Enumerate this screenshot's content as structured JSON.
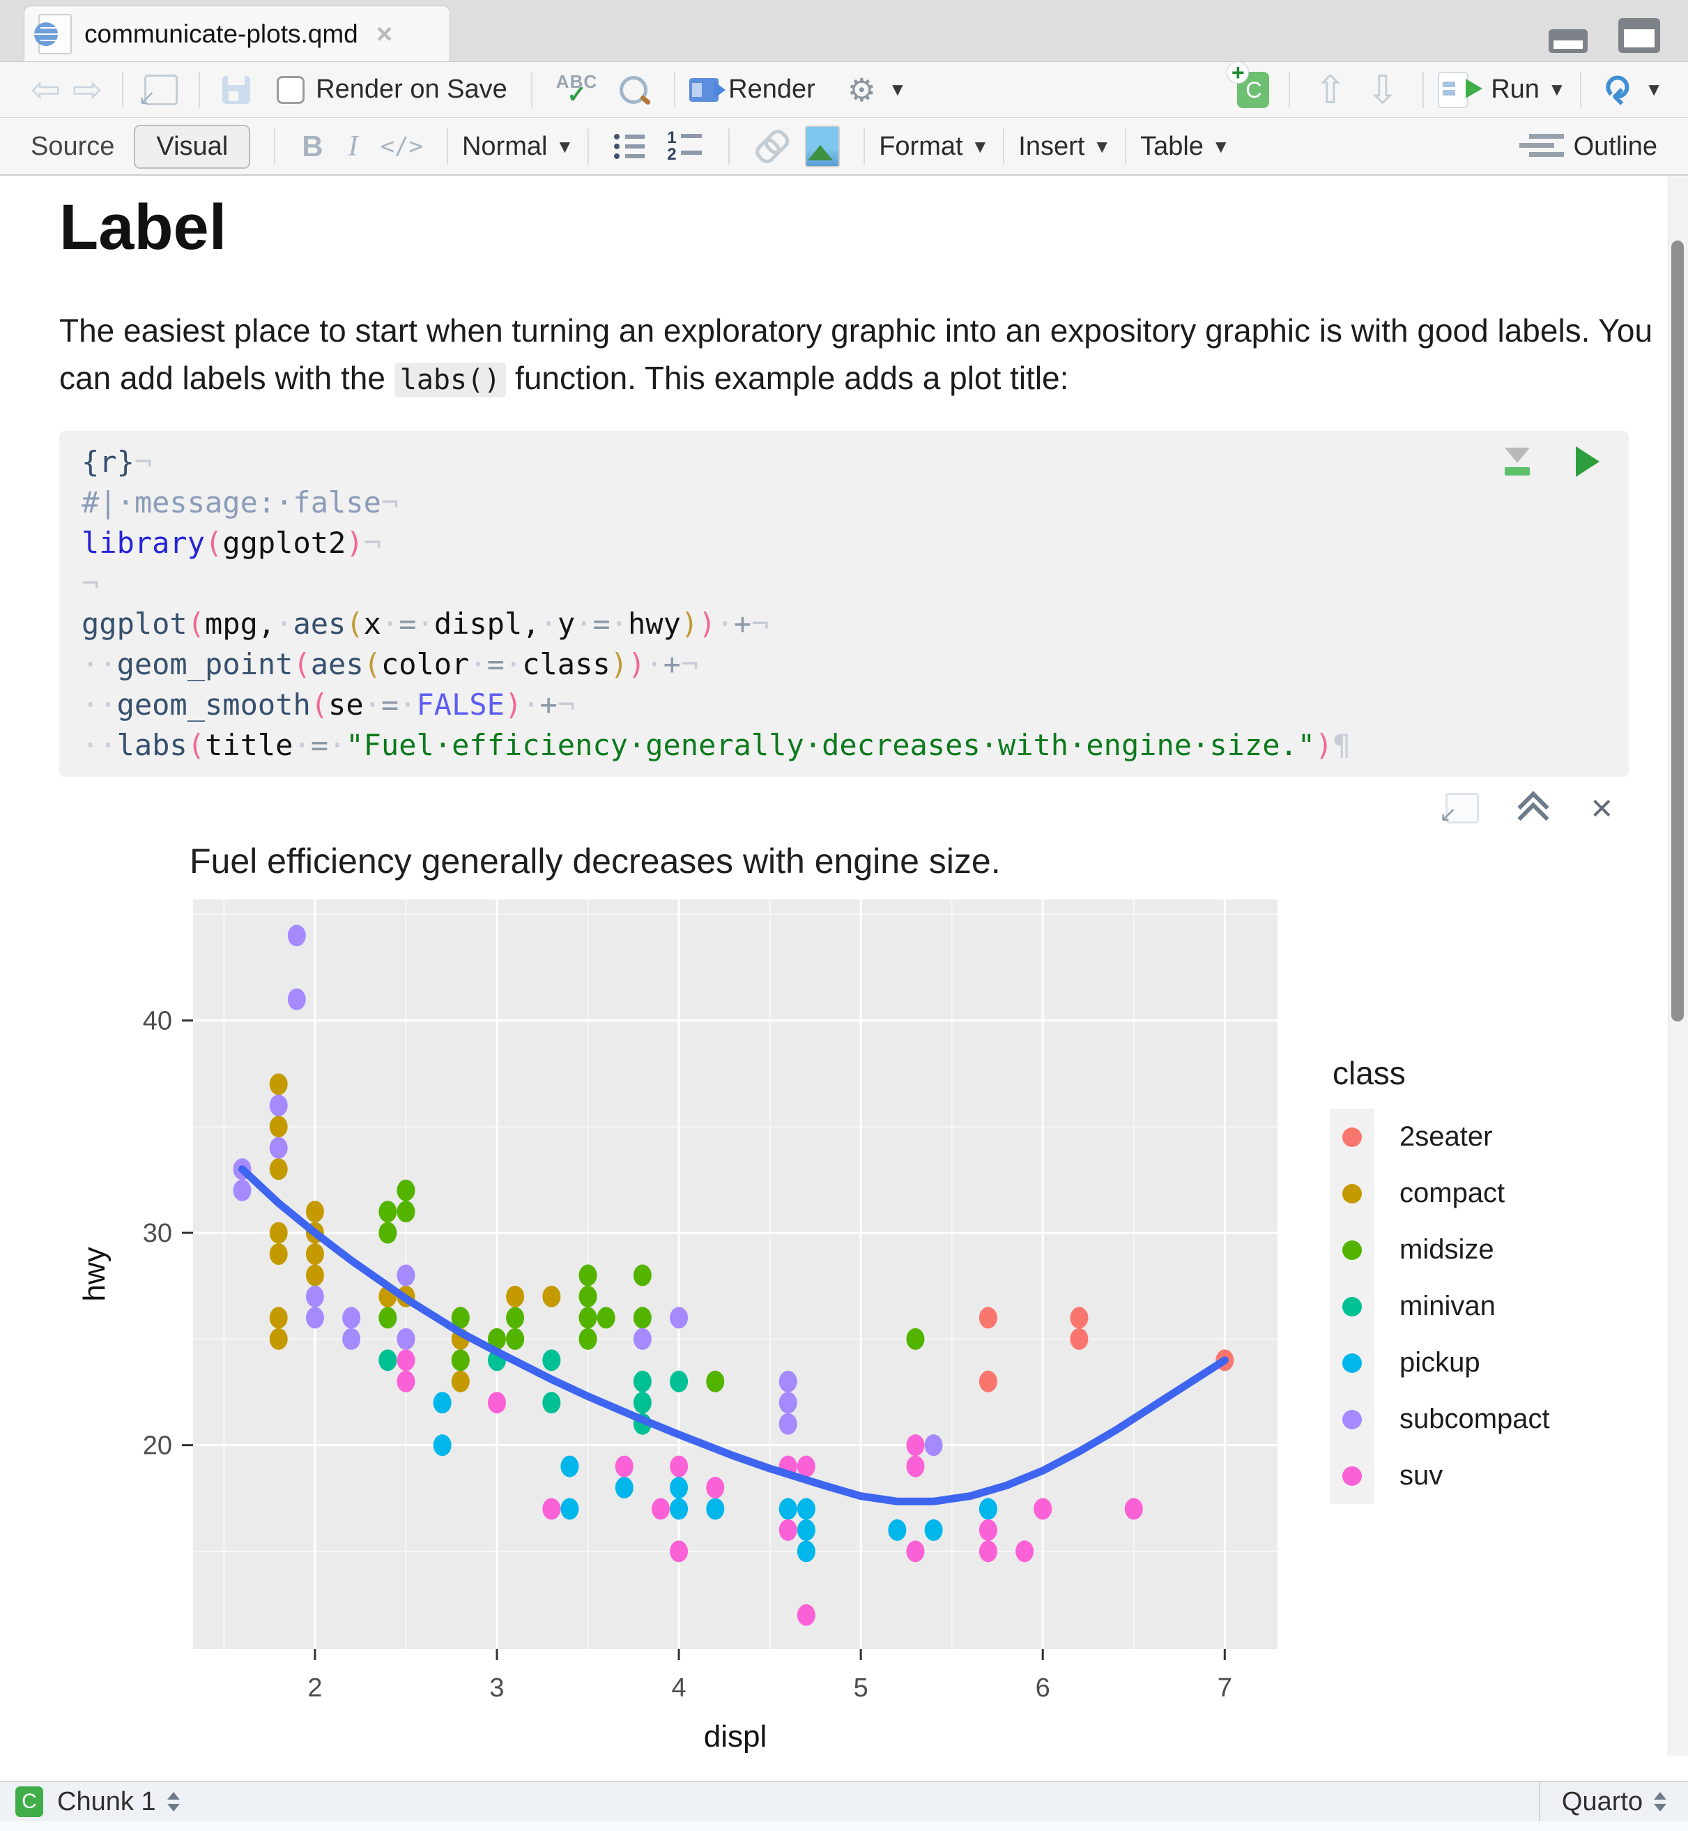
{
  "window": {
    "tab_title": "communicate-plots.qmd"
  },
  "toolbar": {
    "render_on_save_label": "Render on Save",
    "render_label": "Render",
    "run_label": "Run"
  },
  "format_bar": {
    "source_label": "Source",
    "visual_label": "Visual",
    "bold_label": "B",
    "italic_label": "I",
    "code_label": "</>",
    "paragraph_style": "Normal",
    "format_label": "Format",
    "insert_label": "Insert",
    "table_label": "Table",
    "outline_label": "Outline"
  },
  "document": {
    "heading": "Label",
    "para_part1": "The easiest place to start when turning an exploratory graphic into an expository graphic is with good labels. You can add labels with the ",
    "para_code": "labs()",
    "para_part2": " function. This example adds a plot title:"
  },
  "code": {
    "lines": [
      [
        [
          "fn",
          "{r}"
        ],
        [
          "ws",
          "¬"
        ]
      ],
      [
        [
          "com",
          "#|·message:·false"
        ],
        [
          "ws",
          "¬"
        ]
      ],
      [
        [
          "lib",
          "library"
        ],
        [
          "p1",
          "("
        ],
        [
          "txt",
          "ggplot2"
        ],
        [
          "p1",
          ")"
        ],
        [
          "ws",
          "¬"
        ]
      ],
      [
        [
          "ws",
          "¬"
        ]
      ],
      [
        [
          "fn",
          "ggplot"
        ],
        [
          "p1",
          "("
        ],
        [
          "txt",
          "mpg,"
        ],
        [
          "ws",
          "·"
        ],
        [
          "fn",
          "aes"
        ],
        [
          "p2",
          "("
        ],
        [
          "txt",
          "x"
        ],
        [
          "ws",
          "·"
        ],
        [
          "op",
          "="
        ],
        [
          "ws",
          "·"
        ],
        [
          "txt",
          "displ,"
        ],
        [
          "ws",
          "·"
        ],
        [
          "txt",
          "y"
        ],
        [
          "ws",
          "·"
        ],
        [
          "op",
          "="
        ],
        [
          "ws",
          "·"
        ],
        [
          "txt",
          "hwy"
        ],
        [
          "p2",
          ")"
        ],
        [
          "p1",
          ")"
        ],
        [
          "ws",
          "·"
        ],
        [
          "op",
          "+"
        ],
        [
          "ws",
          "¬"
        ]
      ],
      [
        [
          "ws",
          "··"
        ],
        [
          "fn",
          "geom_point"
        ],
        [
          "p1",
          "("
        ],
        [
          "fn",
          "aes"
        ],
        [
          "p2",
          "("
        ],
        [
          "txt",
          "color"
        ],
        [
          "ws",
          "·"
        ],
        [
          "op",
          "="
        ],
        [
          "ws",
          "·"
        ],
        [
          "txt",
          "class"
        ],
        [
          "p2",
          ")"
        ],
        [
          "p1",
          ")"
        ],
        [
          "ws",
          "·"
        ],
        [
          "op",
          "+"
        ],
        [
          "ws",
          "¬"
        ]
      ],
      [
        [
          "ws",
          "··"
        ],
        [
          "fn",
          "geom_smooth"
        ],
        [
          "p1",
          "("
        ],
        [
          "txt",
          "se"
        ],
        [
          "ws",
          "·"
        ],
        [
          "op",
          "="
        ],
        [
          "ws",
          "·"
        ],
        [
          "bool",
          "FALSE"
        ],
        [
          "p1",
          ")"
        ],
        [
          "ws",
          "·"
        ],
        [
          "op",
          "+"
        ],
        [
          "ws",
          "¬"
        ]
      ],
      [
        [
          "ws",
          "··"
        ],
        [
          "fn",
          "labs"
        ],
        [
          "p1",
          "("
        ],
        [
          "txt",
          "title"
        ],
        [
          "ws",
          "·"
        ],
        [
          "op",
          "="
        ],
        [
          "ws",
          "·"
        ],
        [
          "str",
          "\"Fuel·efficiency·generally·decreases·with·engine·size.\""
        ],
        [
          "p1",
          ")"
        ],
        [
          "ws",
          "¶"
        ]
      ]
    ]
  },
  "chart_data": {
    "type": "scatter",
    "title": "Fuel efficiency generally decreases with engine size.",
    "xlabel": "displ",
    "ylabel": "hwy",
    "xlim": [
      1.33,
      7.29
    ],
    "ylim": [
      10.4,
      45.7
    ],
    "x_ticks": [
      2,
      3,
      4,
      5,
      6,
      7
    ],
    "y_ticks": [
      20,
      30,
      40
    ],
    "x_minor": [
      1.5,
      2.5,
      3.5,
      4.5,
      5.5,
      6.5
    ],
    "y_minor": [
      15,
      25,
      35,
      45
    ],
    "grid": "on",
    "legend_position": "right",
    "legend_title": "class",
    "panel_color": "#ebebeb",
    "series": [
      {
        "name": "2seater",
        "color": "#F8766D",
        "points": [
          [
            5.7,
            26
          ],
          [
            5.7,
            23
          ],
          [
            6.2,
            26
          ],
          [
            6.2,
            25
          ],
          [
            7.0,
            24
          ]
        ]
      },
      {
        "name": "compact",
        "color": "#C49A00",
        "points": [
          [
            1.8,
            37
          ],
          [
            1.8,
            35
          ],
          [
            1.8,
            33
          ],
          [
            1.8,
            30
          ],
          [
            1.8,
            29
          ],
          [
            1.8,
            26
          ],
          [
            1.8,
            25
          ],
          [
            2.0,
            31
          ],
          [
            2.0,
            30
          ],
          [
            2.0,
            29
          ],
          [
            2.0,
            28
          ],
          [
            2.4,
            27
          ],
          [
            2.5,
            27
          ],
          [
            2.5,
            25
          ],
          [
            2.8,
            26
          ],
          [
            2.8,
            25
          ],
          [
            2.8,
            24
          ],
          [
            2.8,
            23
          ],
          [
            3.1,
            27
          ],
          [
            3.1,
            25
          ],
          [
            3.3,
            27
          ]
        ]
      },
      {
        "name": "midsize",
        "color": "#53B400",
        "points": [
          [
            2.4,
            31
          ],
          [
            2.4,
            30
          ],
          [
            2.5,
            32
          ],
          [
            2.5,
            31
          ],
          [
            2.4,
            26
          ],
          [
            2.8,
            26
          ],
          [
            3.1,
            26
          ],
          [
            3.5,
            26
          ],
          [
            3.6,
            26
          ],
          [
            3.8,
            26
          ],
          [
            3.0,
            25
          ],
          [
            3.1,
            25
          ],
          [
            3.5,
            25
          ],
          [
            3.5,
            28
          ],
          [
            3.8,
            28
          ],
          [
            3.5,
            27
          ],
          [
            2.8,
            24
          ],
          [
            4.2,
            23
          ],
          [
            5.3,
            25
          ]
        ]
      },
      {
        "name": "minivan",
        "color": "#00C094",
        "points": [
          [
            2.4,
            24
          ],
          [
            3.0,
            24
          ],
          [
            3.3,
            24
          ],
          [
            3.3,
            22
          ],
          [
            3.8,
            23
          ],
          [
            4.0,
            23
          ],
          [
            3.8,
            22
          ],
          [
            3.8,
            21
          ]
        ]
      },
      {
        "name": "pickup",
        "color": "#00B6EB",
        "points": [
          [
            2.7,
            22
          ],
          [
            2.7,
            20
          ],
          [
            3.4,
            19
          ],
          [
            3.7,
            18
          ],
          [
            4.0,
            18
          ],
          [
            3.4,
            17
          ],
          [
            4.0,
            17
          ],
          [
            4.2,
            17
          ],
          [
            4.6,
            17
          ],
          [
            4.7,
            17
          ],
          [
            4.7,
            16
          ],
          [
            5.2,
            16
          ],
          [
            5.4,
            16
          ],
          [
            5.7,
            17
          ],
          [
            4.7,
            15
          ]
        ]
      },
      {
        "name": "subcompact",
        "color": "#A58AFF",
        "points": [
          [
            1.9,
            44
          ],
          [
            1.9,
            41
          ],
          [
            1.8,
            36
          ],
          [
            1.8,
            34
          ],
          [
            1.6,
            33
          ],
          [
            1.6,
            32
          ],
          [
            2.5,
            28
          ],
          [
            2.0,
            27
          ],
          [
            2.0,
            26
          ],
          [
            2.2,
            26
          ],
          [
            2.2,
            25
          ],
          [
            2.5,
            25
          ],
          [
            4.0,
            26
          ],
          [
            3.8,
            25
          ],
          [
            4.6,
            23
          ],
          [
            4.6,
            22
          ],
          [
            4.6,
            21
          ],
          [
            5.4,
            20
          ]
        ]
      },
      {
        "name": "suv",
        "color": "#FB61D7",
        "points": [
          [
            2.5,
            24
          ],
          [
            2.5,
            23
          ],
          [
            3.0,
            22
          ],
          [
            3.7,
            19
          ],
          [
            4.0,
            19
          ],
          [
            4.2,
            18
          ],
          [
            3.3,
            17
          ],
          [
            3.9,
            17
          ],
          [
            4.0,
            15
          ],
          [
            4.6,
            19
          ],
          [
            4.7,
            19
          ],
          [
            4.6,
            16
          ],
          [
            5.3,
            20
          ],
          [
            5.3,
            19
          ],
          [
            5.3,
            15
          ],
          [
            5.7,
            15
          ],
          [
            5.7,
            16
          ],
          [
            6.0,
            17
          ],
          [
            6.5,
            17
          ],
          [
            5.9,
            15
          ],
          [
            4.7,
            12
          ]
        ]
      }
    ],
    "smooth": {
      "name": "loess fit",
      "color": "#3D65F0",
      "points": [
        [
          1.6,
          33
        ],
        [
          1.8,
          31.4
        ],
        [
          2.0,
          30.0
        ],
        [
          2.2,
          28.7
        ],
        [
          2.5,
          26.9
        ],
        [
          2.8,
          25.3
        ],
        [
          3.0,
          24.4
        ],
        [
          3.3,
          23.1
        ],
        [
          3.5,
          22.3
        ],
        [
          3.8,
          21.2
        ],
        [
          4.0,
          20.5
        ],
        [
          4.3,
          19.5
        ],
        [
          4.5,
          18.9
        ],
        [
          4.8,
          18.1
        ],
        [
          5.0,
          17.6
        ],
        [
          5.2,
          17.35
        ],
        [
          5.4,
          17.35
        ],
        [
          5.6,
          17.6
        ],
        [
          5.8,
          18.1
        ],
        [
          6.0,
          18.8
        ],
        [
          6.2,
          19.7
        ],
        [
          6.4,
          20.7
        ],
        [
          6.6,
          21.8
        ],
        [
          6.8,
          22.9
        ],
        [
          7.0,
          24.0
        ]
      ]
    }
  },
  "status_bar": {
    "chunk_label": "Chunk 1",
    "mode_label": "Quarto"
  }
}
